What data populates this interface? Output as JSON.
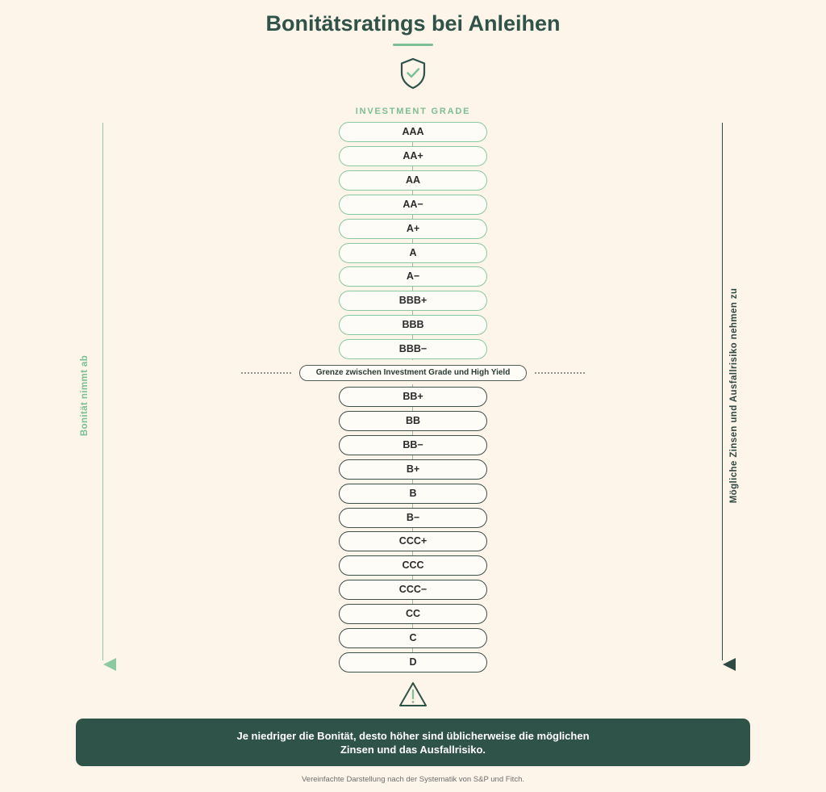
{
  "title": "Bonitätsratings bei Anleihen",
  "icons": {
    "top": "shield-check-icon",
    "bottom": "warning-triangle-icon"
  },
  "section_label": "INVESTMENT GRADE",
  "investment_grade": [
    "AAA",
    "AA+",
    "AA",
    "AA−",
    "A+",
    "A",
    "A−",
    "BBB+",
    "BBB",
    "BBB−"
  ],
  "boundary_label": "Grenze zwischen Investment Grade und High Yield",
  "high_yield": [
    "BB+",
    "BB",
    "BB−",
    "B+",
    "B",
    "B−",
    "CCC+",
    "CCC",
    "CCC−",
    "CC",
    "C",
    "D"
  ],
  "left_axis_label": "Bonität nimmt ab",
  "right_axis_label": "Mögliche Zinsen und Ausfallrisiko nehmen zu",
  "summary": {
    "line1": "Je niedriger die Bonität, desto höher sind üblicherweise die möglichen",
    "line2": "Zinsen und das Ausfallrisiko."
  },
  "footnote": "Vereinfachte Darstellung nach der Systematik von S&P und Fitch.",
  "colors": {
    "background": "#fdf4ea",
    "accent_green": "#7bbf94",
    "dark_green": "#2f5249",
    "investment_border": "#8bc9a1",
    "high_yield_border": "#3f4f49"
  }
}
